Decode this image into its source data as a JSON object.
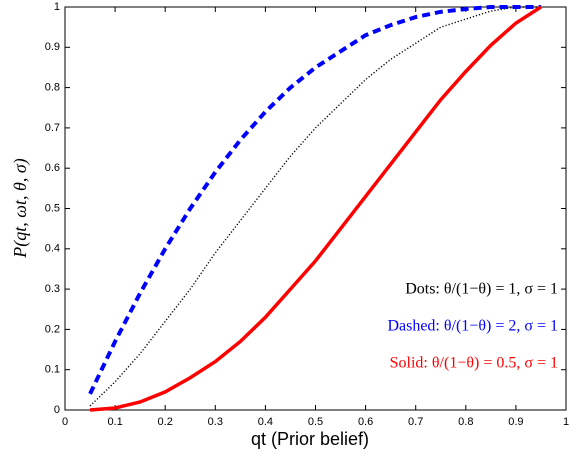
{
  "chart_data": {
    "type": "line",
    "xlabel": "qt (Prior belief)",
    "ylabel": "P(qt, ωt, θ, σ)",
    "x": [
      0.05,
      0.1,
      0.15,
      0.2,
      0.25,
      0.3,
      0.35,
      0.4,
      0.45,
      0.5,
      0.55,
      0.6,
      0.65,
      0.7,
      0.75,
      0.8,
      0.85,
      0.9,
      0.95
    ],
    "series": [
      {
        "name": "Dots: θ/(1−θ) = 1, σ = 1",
        "color": "#000000",
        "dash": "dotted",
        "values": [
          0.01,
          0.07,
          0.14,
          0.22,
          0.3,
          0.39,
          0.47,
          0.55,
          0.63,
          0.7,
          0.76,
          0.82,
          0.87,
          0.91,
          0.95,
          0.97,
          0.99,
          1.0,
          1.0
        ]
      },
      {
        "name": "Dashed: θ/(1−θ) = 2, σ = 1",
        "color": "#0000ff",
        "dash": "dashed",
        "values": [
          0.04,
          0.17,
          0.29,
          0.4,
          0.5,
          0.59,
          0.67,
          0.74,
          0.8,
          0.85,
          0.89,
          0.93,
          0.955,
          0.975,
          0.988,
          0.995,
          1.0,
          1.0,
          1.0
        ]
      },
      {
        "name": "Solid: θ/(1−θ) = 0.5, σ = 1",
        "color": "#ff0000",
        "dash": "solid",
        "values": [
          0.0,
          0.005,
          0.02,
          0.045,
          0.08,
          0.12,
          0.17,
          0.23,
          0.3,
          0.37,
          0.45,
          0.53,
          0.61,
          0.69,
          0.77,
          0.84,
          0.905,
          0.96,
          1.0
        ]
      }
    ],
    "xlim": [
      0,
      1
    ],
    "ylim": [
      0,
      1
    ],
    "xticks": [
      0,
      0.1,
      0.2,
      0.3,
      0.4,
      0.5,
      0.6,
      0.7,
      0.8,
      0.9,
      1
    ],
    "yticks": [
      0,
      0.1,
      0.2,
      0.3,
      0.4,
      0.5,
      0.6,
      0.7,
      0.8,
      0.9,
      1
    ]
  }
}
